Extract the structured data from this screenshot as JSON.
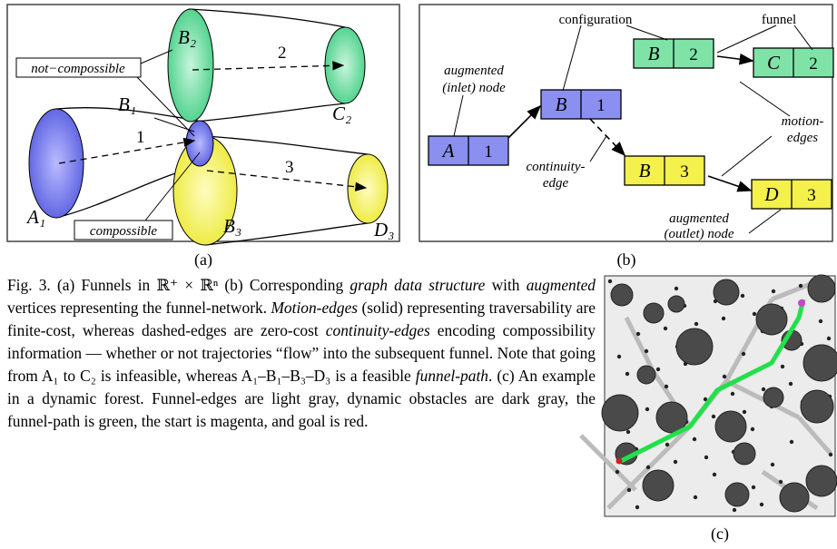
{
  "panel_a": {
    "label": "(a)",
    "sets": {
      "a1": "A₁",
      "b1": "B₁",
      "b2": "B₂",
      "b3": "B₃",
      "c2": "C₂",
      "d3": "D₃"
    },
    "edge_numbers": [
      "1",
      "2",
      "3"
    ],
    "callouts": {
      "not_compossible": "not−compossible",
      "compossible": "compossible"
    }
  },
  "panel_b": {
    "label": "(b)",
    "nodes": [
      {
        "set": "A",
        "index": "1"
      },
      {
        "set": "B",
        "index": "1"
      },
      {
        "set": "B",
        "index": "2"
      },
      {
        "set": "C",
        "index": "2"
      },
      {
        "set": "B",
        "index": "3"
      },
      {
        "set": "D",
        "index": "3"
      }
    ],
    "annotations": {
      "configuration": "configuration",
      "funnel": "funnel",
      "inlet": [
        "augmented",
        "(inlet) node"
      ],
      "continuity": [
        "continuity-",
        "edge"
      ],
      "motion": [
        "motion-",
        "edges"
      ],
      "outlet": [
        "augmented",
        "(outlet) node"
      ]
    }
  },
  "panel_c": {
    "label": "(c)"
  },
  "caption": [
    "Fig. 3. (a) Funnels in ℝ⁺ × ℝⁿ (b) Corresponding ",
    "graph data structure",
    " with ",
    "augmented",
    " vertices representing the funnel-network. ",
    "Motion-edges",
    " (solid) representing traversability are finite-cost, whereas dashed-edges are zero-cost ",
    "continuity-edges",
    " encoding compossibility information — whether or not trajectories “flow” into the subsequent funnel. Note that going from A₁ to C₂ is infeasible, whereas A₁–B₁–B₃–D₃ is a feasible ",
    "funnel-path",
    ". (c) An example in a dynamic forest. Funnel-edges are light gray, dynamic obstacles are dark gray, the funnel-path is green, the start is magenta, and goal is red."
  ]
}
